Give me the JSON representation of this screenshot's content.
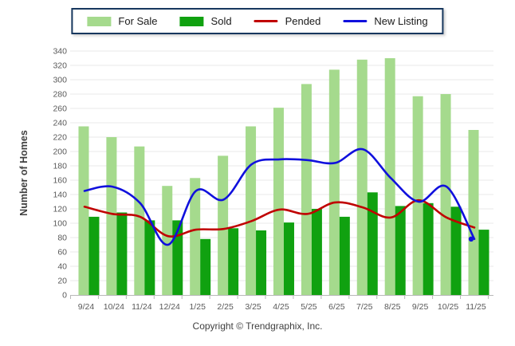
{
  "chart_data": {
    "type": "combo",
    "title": "",
    "categories": [
      "9/24",
      "10/24",
      "11/24",
      "12/24",
      "1/25",
      "2/25",
      "3/25",
      "4/25",
      "5/25",
      "6/25",
      "7/25",
      "8/25",
      "9/25",
      "10/25",
      "11/25"
    ],
    "series": [
      {
        "name": "For Sale",
        "type": "bar",
        "color": "#a5da8d",
        "values": [
          235,
          220,
          207,
          152,
          163,
          194,
          235,
          261,
          294,
          314,
          328,
          330,
          277,
          280,
          230
        ]
      },
      {
        "name": "Sold",
        "type": "bar",
        "color": "#10a110",
        "values": [
          109,
          115,
          104,
          104,
          78,
          93,
          90,
          101,
          120,
          109,
          143,
          124,
          128,
          123,
          91
        ]
      },
      {
        "name": "Pended",
        "type": "line",
        "color": "#c00000",
        "values": [
          123,
          113,
          109,
          82,
          91,
          92,
          103,
          119,
          113,
          129,
          122,
          108,
          132,
          108,
          94
        ]
      },
      {
        "name": "New Listing",
        "type": "line",
        "color": "#1010dd",
        "end_dot": true,
        "values": [
          145,
          151,
          128,
          70,
          145,
          133,
          182,
          189,
          188,
          184,
          203,
          163,
          130,
          151,
          78
        ]
      }
    ],
    "xlabel": "",
    "ylabel": "Number of Homes",
    "ylim": [
      0,
      340
    ],
    "ytick_step": 20,
    "grid": "horizontal",
    "legend_position": "top"
  },
  "colors": {
    "grid": "#e8e8e8",
    "axis": "#b8b8b8",
    "tick_text": "#595959",
    "axis_title": "#3f3f3f",
    "legend_border": "#17375e"
  },
  "footer": {
    "copyright": "Copyright © Trendgraphix, Inc."
  }
}
